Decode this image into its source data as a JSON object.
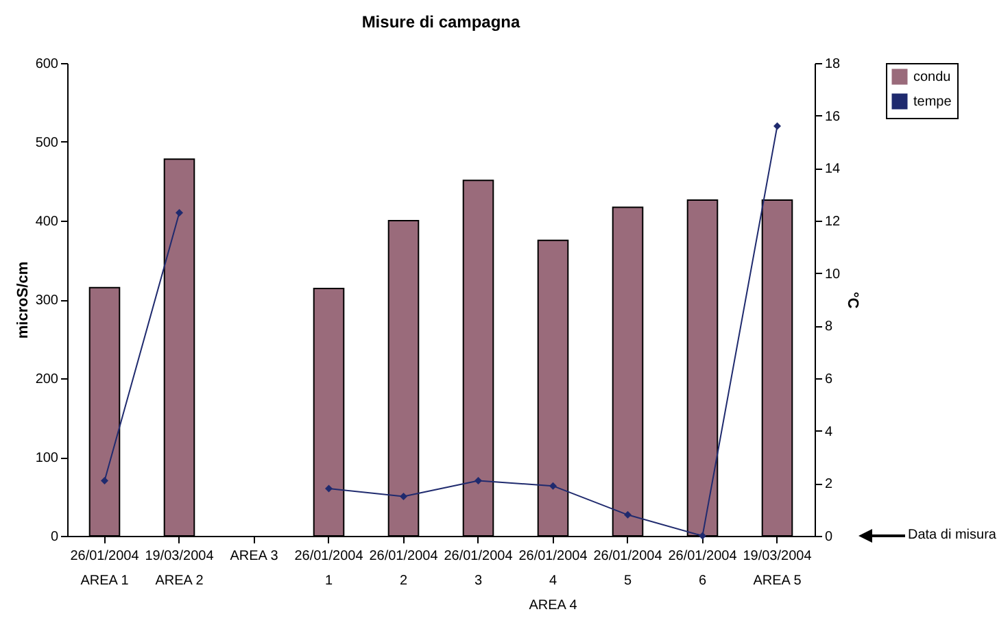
{
  "chart_data": {
    "type": "bar",
    "title": "Misure di campagna",
    "categories": [
      "26/01/2004\nAREA 1",
      "19/03/2004\nAREA 2",
      "AREA 3",
      "26/01/2004\n1",
      "26/01/2004\n2",
      "26/01/2004\n3",
      "26/01/2004\n4\nAREA 4",
      "26/01/2004\n5",
      "26/01/2004\n6",
      "19/03/2004\nAREA 5"
    ],
    "series": [
      {
        "name": "condu",
        "color": "#9a6b7b",
        "values": [
          315,
          478,
          null,
          314,
          400,
          451,
          375,
          417,
          426,
          426
        ]
      },
      {
        "name": "tempe",
        "type": "line",
        "axis": "y2",
        "color": "#1f2a6e",
        "values": [
          2.1,
          12.3,
          null,
          1.8,
          1.5,
          2.1,
          1.9,
          0.8,
          0.0,
          15.6
        ]
      }
    ],
    "ylabel": "microS/cm",
    "y2label": "°C",
    "ylim": [
      0,
      600
    ],
    "yticks": [
      0,
      100,
      200,
      300,
      400,
      500,
      600
    ],
    "y2lim": [
      0,
      18
    ],
    "y2ticks": [
      0,
      2,
      4,
      6,
      8,
      10,
      12,
      14,
      16,
      18
    ],
    "marker": "diamond",
    "legend": "right",
    "annotations": [
      "Data di misura"
    ]
  }
}
